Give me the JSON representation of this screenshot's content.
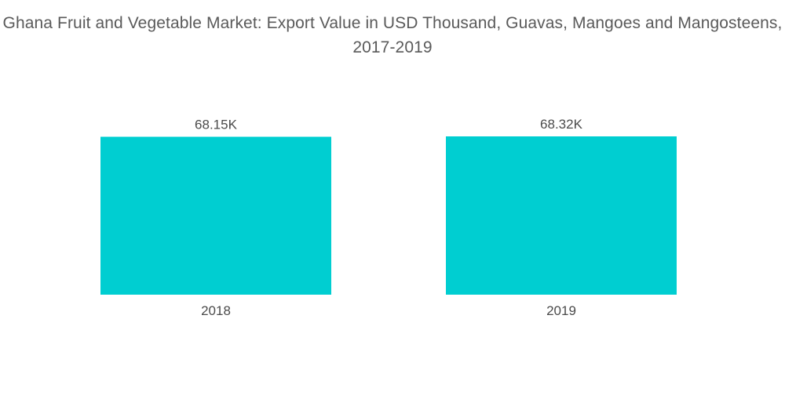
{
  "chart_data": {
    "type": "bar",
    "title": "Ghana Fruit and Vegetable Market: Export Value in USD Thousand, Guavas, Mangoes and Mangosteens, 2017-2019",
    "categories": [
      "2018",
      "2019"
    ],
    "values": [
      68.15,
      68.32
    ],
    "data_labels": [
      "68.15K",
      "68.32K"
    ],
    "xlabel": "",
    "ylabel": "",
    "ylim": [
      0,
      68.32
    ],
    "grid": false,
    "legend": "none",
    "bar_color": "#00CED1"
  }
}
